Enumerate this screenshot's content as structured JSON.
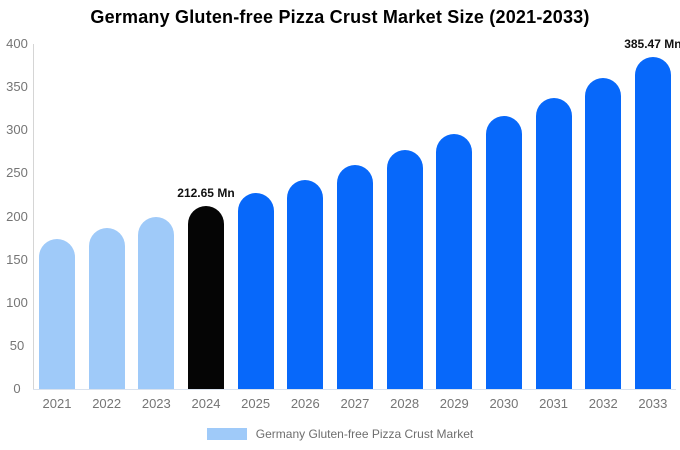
{
  "title": "Germany Gluten-free Pizza Crust Market Size (2021-2033)",
  "chart_data": {
    "type": "bar",
    "title": "Germany Gluten-free Pizza Crust Market Size (2021-2033)",
    "categories": [
      "2021",
      "2022",
      "2023",
      "2024",
      "2025",
      "2026",
      "2027",
      "2028",
      "2029",
      "2030",
      "2031",
      "2032",
      "2033"
    ],
    "values": [
      174.4,
      186.32,
      199.05,
      212.65,
      227.18,
      242.7,
      259.28,
      276.99,
      295.92,
      316.14,
      337.74,
      360.81,
      385.47
    ],
    "unit": "Mn",
    "xlabel": "",
    "ylabel": "",
    "ylim": [
      0,
      400
    ],
    "yticks": [
      0,
      50,
      100,
      150,
      200,
      250,
      300,
      350,
      400
    ],
    "grid": false,
    "annotations": [
      {
        "category": "2024",
        "text": "212.65 Mn"
      },
      {
        "category": "2033",
        "text": "385.47 Mn"
      }
    ],
    "bar_colors": [
      "#9FCAF9",
      "#9FCAF9",
      "#9FCAF9",
      "#050505",
      "#0768FA",
      "#0768FA",
      "#0768FA",
      "#0768FA",
      "#0768FA",
      "#0768FA",
      "#0768FA",
      "#0768FA",
      "#0768FA"
    ],
    "colors": {
      "historical": "#9FCAF9",
      "base_year": "#050505",
      "forecast": "#0768FA",
      "axis_line": "#D5D5D5",
      "tick_label": "#757575",
      "legend_text": "#6E6E6E"
    },
    "legend": {
      "label": "Germany Gluten-free Pizza Crust Market",
      "position": "bottom",
      "swatch_color": "#9FCAF9"
    }
  }
}
